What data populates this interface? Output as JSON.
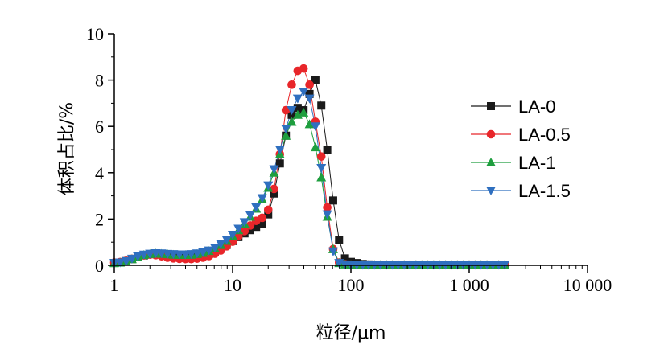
{
  "chart_data": {
    "type": "scatter",
    "xscale": "log",
    "xlabel": "粒径/μm",
    "ylabel": "体积占比/%",
    "xlim": [
      1,
      10000
    ],
    "ylim": [
      0,
      10
    ],
    "xticks": [
      1,
      10,
      100,
      1000,
      10000
    ],
    "xtick_labels": [
      "1",
      "10",
      "100",
      "1 000",
      "10 000"
    ],
    "yticks": [
      0,
      2,
      4,
      6,
      8,
      10
    ],
    "ytick_labels": [
      "0",
      "2",
      "4",
      "6",
      "8",
      "10"
    ],
    "grid": false,
    "legend_position": "right",
    "x": [
      1.0,
      1.12,
      1.26,
      1.41,
      1.58,
      1.78,
      2.0,
      2.24,
      2.51,
      2.82,
      3.16,
      3.55,
      3.98,
      4.47,
      5.01,
      5.62,
      6.31,
      7.08,
      7.94,
      8.91,
      10.0,
      11.2,
      12.6,
      14.1,
      15.8,
      17.8,
      20.0,
      22.4,
      25.1,
      28.2,
      31.6,
      35.5,
      39.8,
      44.7,
      50.1,
      56.2,
      63.1,
      70.8,
      79.4,
      89.1,
      100,
      112,
      126,
      141,
      158,
      178,
      200,
      224,
      251,
      282,
      316,
      355,
      398,
      447,
      501,
      562,
      631,
      708,
      794,
      891,
      1000,
      1122,
      1259,
      1413,
      1585,
      1778,
      1995
    ],
    "series": [
      {
        "name": "LA-0",
        "marker": "square",
        "color": "#1a1a1a",
        "values": [
          0.1,
          0.12,
          0.18,
          0.27,
          0.36,
          0.43,
          0.48,
          0.51,
          0.5,
          0.47,
          0.44,
          0.41,
          0.39,
          0.38,
          0.39,
          0.42,
          0.48,
          0.58,
          0.72,
          0.88,
          1.05,
          1.22,
          1.38,
          1.52,
          1.66,
          1.8,
          2.2,
          3.1,
          4.4,
          5.6,
          6.5,
          6.8,
          6.7,
          7.4,
          8.0,
          6.9,
          5.0,
          2.8,
          1.1,
          0.3,
          0.15,
          0.1,
          0.06,
          0.04,
          0.03,
          0.03,
          0.03,
          0.03,
          0.03,
          0.03,
          0.03,
          0.03,
          0.03,
          0.03,
          0.03,
          0.03,
          0.03,
          0.03,
          0.03,
          0.03,
          0.03,
          0.03,
          0.03,
          0.03,
          0.03,
          0.03,
          0.03
        ]
      },
      {
        "name": "LA-0.5",
        "marker": "circle",
        "color": "#e8262a",
        "values": [
          0.12,
          0.14,
          0.2,
          0.28,
          0.36,
          0.43,
          0.46,
          0.44,
          0.39,
          0.33,
          0.3,
          0.28,
          0.27,
          0.27,
          0.29,
          0.33,
          0.4,
          0.5,
          0.64,
          0.82,
          1.02,
          1.25,
          1.48,
          1.72,
          1.92,
          2.05,
          2.4,
          3.3,
          4.8,
          6.7,
          7.8,
          8.4,
          8.5,
          7.8,
          6.2,
          4.7,
          2.5,
          0.7,
          0.12,
          0.05,
          0.03,
          0.03,
          0.03,
          0.03,
          0.03,
          0.03,
          0.03,
          0.03,
          0.03,
          0.03,
          0.03,
          0.03,
          0.03,
          0.03,
          0.03,
          0.03,
          0.03,
          0.03,
          0.03,
          0.03,
          0.03,
          0.03,
          0.03,
          0.03,
          0.03,
          0.03,
          0.03
        ]
      },
      {
        "name": "LA-1",
        "marker": "triangle-up",
        "color": "#1e9e3e",
        "values": [
          0.1,
          0.12,
          0.18,
          0.27,
          0.37,
          0.45,
          0.49,
          0.51,
          0.5,
          0.48,
          0.46,
          0.45,
          0.45,
          0.46,
          0.49,
          0.54,
          0.62,
          0.73,
          0.88,
          1.06,
          1.27,
          1.52,
          1.8,
          2.1,
          2.45,
          2.85,
          3.35,
          4.0,
          4.8,
          5.6,
          6.2,
          6.5,
          6.6,
          6.1,
          5.1,
          3.8,
          2.1,
          0.7,
          0.1,
          0.04,
          0.02,
          0.02,
          0.02,
          0.02,
          0.02,
          0.02,
          0.02,
          0.02,
          0.02,
          0.02,
          0.02,
          0.02,
          0.02,
          0.02,
          0.02,
          0.02,
          0.02,
          0.02,
          0.02,
          0.02,
          0.02,
          0.02,
          0.02,
          0.02,
          0.02,
          0.02,
          0.02
        ]
      },
      {
        "name": "LA-1.5",
        "marker": "triangle-down",
        "color": "#2f6fbf",
        "values": [
          0.1,
          0.12,
          0.18,
          0.28,
          0.38,
          0.46,
          0.5,
          0.52,
          0.51,
          0.49,
          0.48,
          0.47,
          0.47,
          0.48,
          0.51,
          0.56,
          0.64,
          0.76,
          0.92,
          1.1,
          1.32,
          1.58,
          1.86,
          2.16,
          2.5,
          2.9,
          3.45,
          4.15,
          5.0,
          5.9,
          6.7,
          7.2,
          7.5,
          7.2,
          6.0,
          4.2,
          2.2,
          0.6,
          0.1,
          0.04,
          0.02,
          0.02,
          0.02,
          0.02,
          0.02,
          0.02,
          0.02,
          0.02,
          0.02,
          0.02,
          0.02,
          0.02,
          0.02,
          0.02,
          0.02,
          0.02,
          0.02,
          0.02,
          0.02,
          0.02,
          0.02,
          0.02,
          0.02,
          0.02,
          0.02,
          0.02,
          0.02
        ]
      }
    ]
  }
}
